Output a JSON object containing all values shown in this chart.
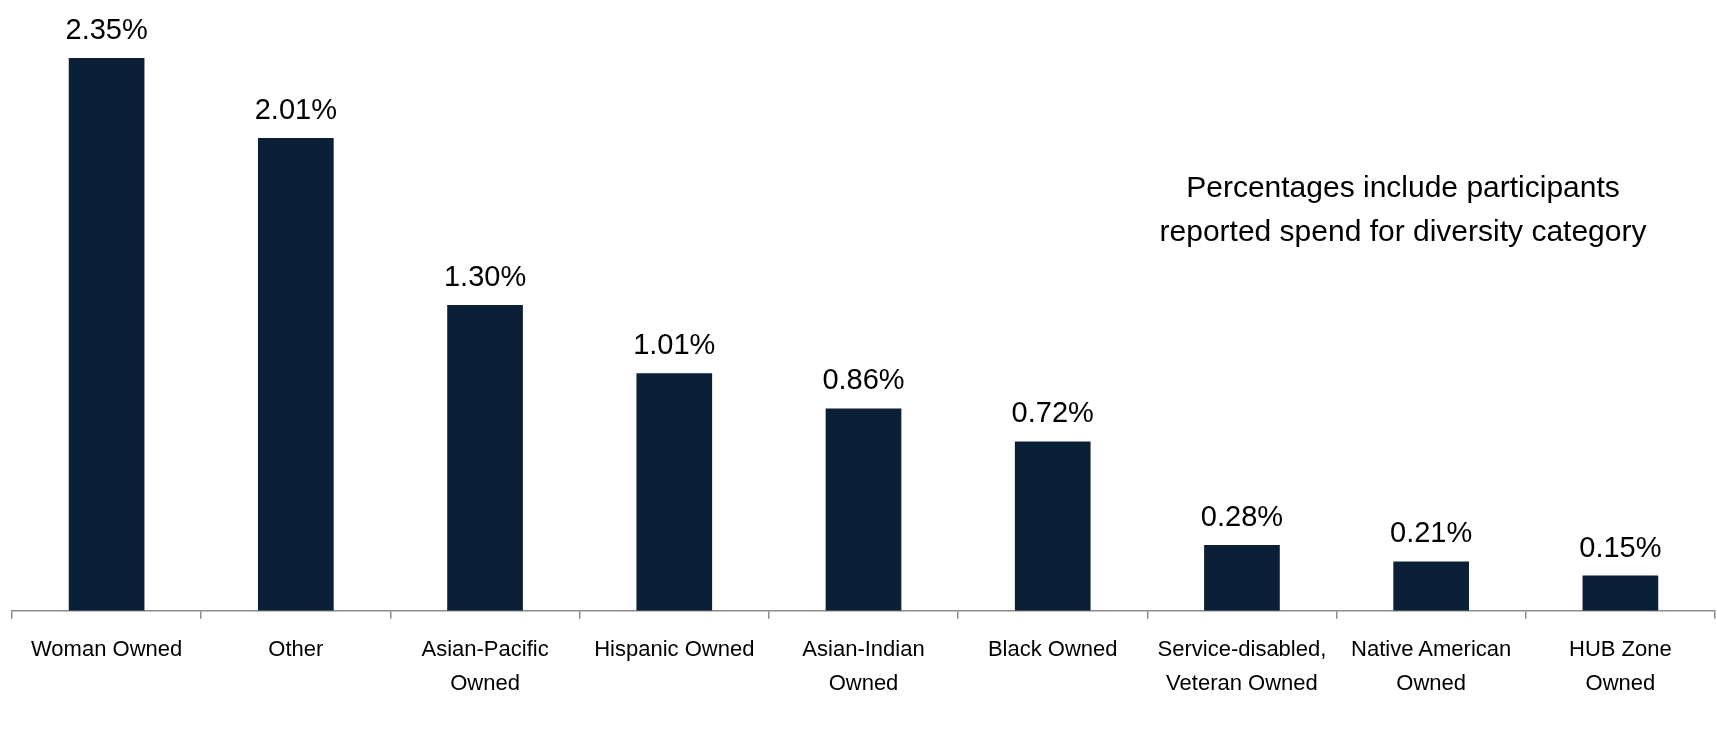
{
  "chart_data": {
    "type": "bar",
    "categories": [
      "Woman Owned",
      "Other",
      "Asian-Pacific Owned",
      "Hispanic Owned",
      "Asian-Indian Owned",
      "Black Owned",
      "Service-disabled, Veteran Owned",
      "Native American Owned",
      "HUB Zone Owned"
    ],
    "values": [
      2.35,
      2.01,
      1.3,
      1.01,
      0.86,
      0.72,
      0.28,
      0.21,
      0.15
    ],
    "value_labels": [
      "2.35%",
      "2.01%",
      "1.30%",
      "1.01%",
      "0.86%",
      "0.72%",
      "0.28%",
      "0.21%",
      "0.15%"
    ],
    "color": "#0b1f36",
    "tick_labels": "x",
    "annotations": [
      "Percentages include participants reported spend for diversity category"
    ]
  }
}
